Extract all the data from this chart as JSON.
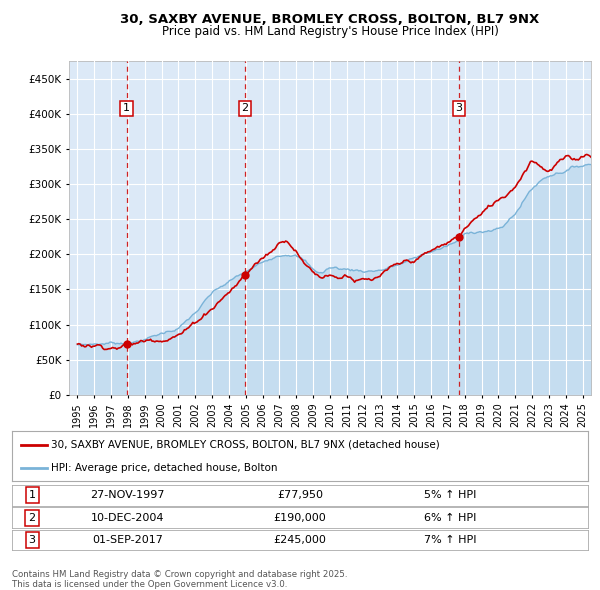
{
  "title_line1": "30, SAXBY AVENUE, BROMLEY CROSS, BOLTON, BL7 9NX",
  "title_line2": "Price paid vs. HM Land Registry's House Price Index (HPI)",
  "background_color": "#dce9f7",
  "grid_color": "white",
  "hpi_color": "#7ab3d8",
  "hpi_fill_color": "#c5ddf0",
  "price_color": "#cc0000",
  "ylim": [
    0,
    475000
  ],
  "xlim": [
    1994.5,
    2025.5
  ],
  "yticks": [
    0,
    50000,
    100000,
    150000,
    200000,
    250000,
    300000,
    350000,
    400000,
    450000
  ],
  "ytick_labels": [
    "£0",
    "£50K",
    "£100K",
    "£150K",
    "£200K",
    "£250K",
    "£300K",
    "£350K",
    "£400K",
    "£450K"
  ],
  "sales": [
    {
      "date_num": 1997.92,
      "price": 77950,
      "label": "1",
      "date_str": "27-NOV-1997",
      "price_str": "£77,950",
      "hpi_str": "5% ↑ HPI"
    },
    {
      "date_num": 2004.96,
      "price": 190000,
      "label": "2",
      "date_str": "10-DEC-2004",
      "price_str": "£190,000",
      "hpi_str": "6% ↑ HPI"
    },
    {
      "date_num": 2017.67,
      "price": 245000,
      "label": "3",
      "date_str": "01-SEP-2017",
      "price_str": "£245,000",
      "hpi_str": "7% ↑ HPI"
    }
  ],
  "legend_line1": "30, SAXBY AVENUE, BROMLEY CROSS, BOLTON, BL7 9NX (detached house)",
  "legend_line2": "HPI: Average price, detached house, Bolton",
  "footer": "Contains HM Land Registry data © Crown copyright and database right 2025.\nThis data is licensed under the Open Government Licence v3.0."
}
